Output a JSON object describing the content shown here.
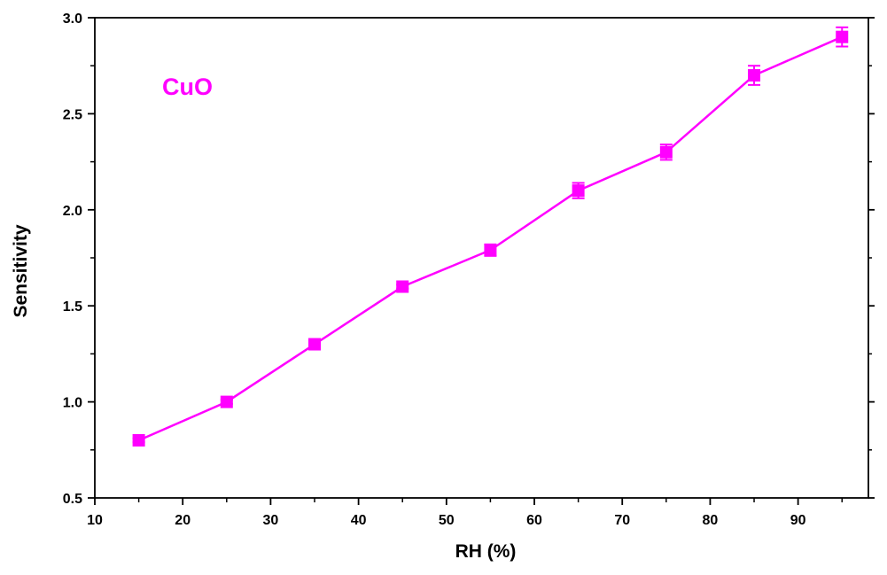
{
  "chart_data": {
    "type": "line",
    "xlabel": "RH (%)",
    "ylabel": "Sensitivity",
    "xlim": [
      10,
      98
    ],
    "ylim": [
      0.5,
      3.0
    ],
    "x_ticks": [
      10,
      20,
      30,
      40,
      50,
      60,
      70,
      80,
      90
    ],
    "y_ticks": [
      0.5,
      1.0,
      1.5,
      2.0,
      2.5,
      3.0
    ],
    "x_tick_labels": [
      "10",
      "20",
      "30",
      "40",
      "50",
      "60",
      "70",
      "80",
      "90"
    ],
    "y_tick_labels": [
      "0.5",
      "1.0",
      "1.5",
      "2.0",
      "2.5",
      "3.0"
    ],
    "grid": false,
    "marker": "square",
    "series": [
      {
        "name": "CuO",
        "color": "#ff00ff",
        "x": [
          15,
          25,
          35,
          45,
          55,
          65,
          75,
          85,
          95
        ],
        "y": [
          0.8,
          1.0,
          1.3,
          1.6,
          1.79,
          2.1,
          2.3,
          2.7,
          2.9
        ],
        "error": [
          0.01,
          0.01,
          0.02,
          0.01,
          0.03,
          0.04,
          0.04,
          0.05,
          0.05
        ]
      }
    ],
    "annotation": {
      "text": "CuO",
      "color": "#ff00ff",
      "placement": "top-left"
    }
  }
}
